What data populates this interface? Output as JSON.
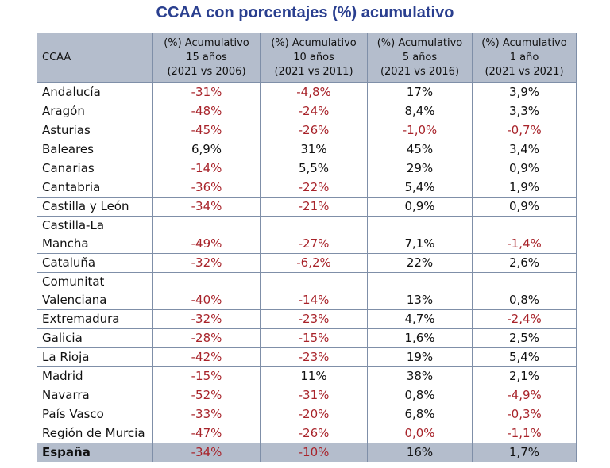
{
  "title": "CCAA con porcentajes (%) acumulativo",
  "headers": [
    [
      "CCAA"
    ],
    [
      "(%) Acumulativo",
      "15 años",
      "(2021 vs 2006)"
    ],
    [
      "(%) Acumulativo",
      "10 años",
      "(2021 vs 2011)"
    ],
    [
      "(%) Acumulativo",
      "5 años",
      "(2021 vs 2016)"
    ],
    [
      "(%) Acumulativo",
      "1 año",
      "(2021 vs 2021)"
    ]
  ],
  "rows": [
    {
      "name": [
        "Andalucía"
      ],
      "values": [
        "-31%",
        "-4,8%",
        "17%",
        "3,9%"
      ]
    },
    {
      "name": [
        "Aragón"
      ],
      "values": [
        "-48%",
        "-24%",
        "8,4%",
        "3,3%"
      ]
    },
    {
      "name": [
        "Asturias"
      ],
      "values": [
        "-45%",
        "-26%",
        "-1,0%",
        "-0,7%"
      ]
    },
    {
      "name": [
        "Baleares"
      ],
      "values": [
        "6,9%",
        "31%",
        "45%",
        "3,4%"
      ]
    },
    {
      "name": [
        "Canarias"
      ],
      "values": [
        "-14%",
        "5,5%",
        "29%",
        "0,9%"
      ]
    },
    {
      "name": [
        "Cantabria"
      ],
      "values": [
        "-36%",
        "-22%",
        "5,4%",
        "1,9%"
      ]
    },
    {
      "name": [
        "Castilla y León"
      ],
      "values": [
        "-34%",
        "-21%",
        "0,9%",
        "0,9%"
      ]
    },
    {
      "name": [
        "Castilla-La",
        "Mancha"
      ],
      "values": [
        "-49%",
        "-27%",
        "7,1%",
        "-1,4%"
      ]
    },
    {
      "name": [
        "Cataluña"
      ],
      "values": [
        "-32%",
        "-6,2%",
        "22%",
        "2,6%"
      ]
    },
    {
      "name": [
        "Comunitat",
        "Valenciana"
      ],
      "values": [
        "-40%",
        "-14%",
        "13%",
        "0,8%"
      ]
    },
    {
      "name": [
        "Extremadura"
      ],
      "values": [
        "-32%",
        "-23%",
        "4,7%",
        "-2,4%"
      ]
    },
    {
      "name": [
        "Galicia"
      ],
      "values": [
        "-28%",
        "-15%",
        "1,6%",
        "2,5%"
      ]
    },
    {
      "name": [
        "La Rioja"
      ],
      "values": [
        "-42%",
        "-23%",
        "19%",
        "5,4%"
      ]
    },
    {
      "name": [
        "Madrid"
      ],
      "values": [
        "-15%",
        "11%",
        "38%",
        "2,1%"
      ]
    },
    {
      "name": [
        "Navarra"
      ],
      "values": [
        "-52%",
        "-31%",
        "0,8%",
        "-4,9%"
      ]
    },
    {
      "name": [
        "País Vasco"
      ],
      "values": [
        "-33%",
        "-20%",
        "6,8%",
        "-0,3%"
      ]
    },
    {
      "name": [
        "Región de Murcia"
      ],
      "values": [
        "-47%",
        "-26%",
        "0,0%",
        "-1,1%"
      ]
    }
  ],
  "total": {
    "name": [
      "España"
    ],
    "values": [
      "-34%",
      "-10%",
      "16%",
      "1,7%"
    ]
  },
  "colors": {
    "title": "#2a3f8f",
    "negative": "#a8232a",
    "header_bg": "#b4bdcc",
    "border": "#7f8fa8"
  },
  "highlight_red": [
    [
      true,
      true,
      false,
      false
    ],
    [
      true,
      true,
      false,
      false
    ],
    [
      true,
      true,
      true,
      true
    ],
    [
      false,
      false,
      false,
      false
    ],
    [
      true,
      false,
      false,
      false
    ],
    [
      true,
      true,
      false,
      false
    ],
    [
      true,
      true,
      false,
      false
    ],
    [
      true,
      true,
      false,
      true
    ],
    [
      true,
      true,
      false,
      false
    ],
    [
      true,
      true,
      false,
      false
    ],
    [
      true,
      true,
      false,
      true
    ],
    [
      true,
      true,
      false,
      false
    ],
    [
      true,
      true,
      false,
      false
    ],
    [
      true,
      false,
      false,
      false
    ],
    [
      true,
      true,
      false,
      true
    ],
    [
      true,
      true,
      false,
      true
    ],
    [
      true,
      true,
      true,
      true
    ]
  ],
  "total_red": [
    true,
    true,
    false,
    false
  ]
}
